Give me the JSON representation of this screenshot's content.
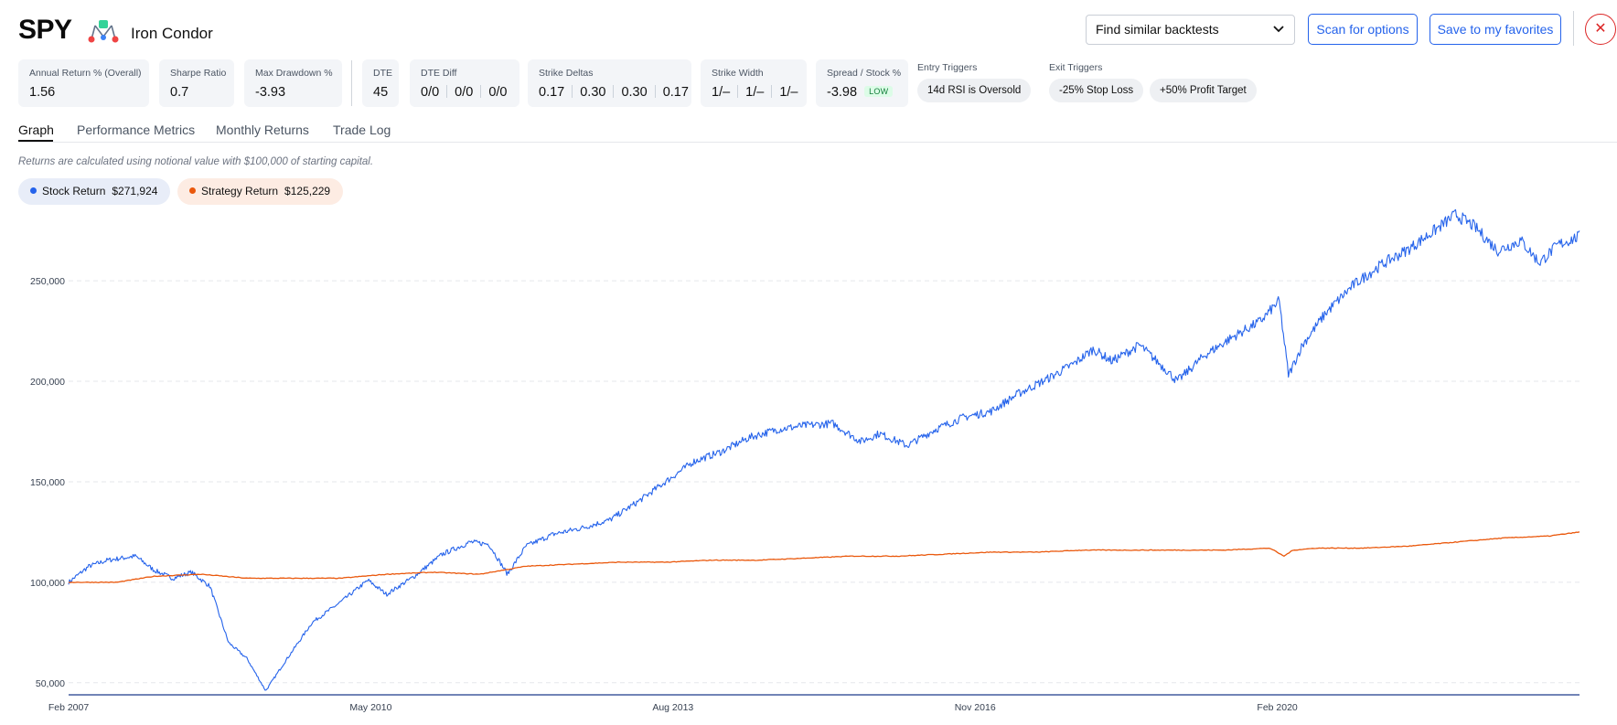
{
  "header": {
    "ticker": "SPY",
    "strategy_name": "Iron Condor",
    "strategy_icon": "iron-condor-icon",
    "similar_select": "Find similar backtests",
    "scan_button": "Scan for options",
    "favorites_button": "Save to my favorites",
    "close_icon": "close-icon"
  },
  "stats": [
    {
      "label": "Annual Return % (Overall)",
      "value": "1.56"
    },
    {
      "label": "Sharpe Ratio",
      "value": "0.7"
    },
    {
      "label": "Max Drawdown %",
      "value": "-3.93"
    },
    {
      "label": "DTE",
      "value": "45"
    },
    {
      "label": "DTE Diff",
      "values": [
        "0/0",
        "0/0",
        "0/0"
      ]
    },
    {
      "label": "Strike Deltas",
      "values": [
        "0.17",
        "0.30",
        "0.30",
        "0.17"
      ]
    },
    {
      "label": "Strike Width",
      "values": [
        "1/–",
        "1/–",
        "1/–"
      ]
    },
    {
      "label": "Spread / Stock %",
      "value": "-3.98",
      "badge": "LOW"
    }
  ],
  "entry_triggers": {
    "title": "Entry Triggers",
    "items": [
      "14d RSI is Oversold"
    ]
  },
  "exit_triggers": {
    "title": "Exit Triggers",
    "items": [
      "-25% Stop Loss",
      "+50% Profit Target"
    ]
  },
  "tabs": [
    {
      "label": "Graph",
      "active": true
    },
    {
      "label": "Performance Metrics",
      "active": false
    },
    {
      "label": "Monthly Returns",
      "active": false
    },
    {
      "label": "Trade Log",
      "active": false
    }
  ],
  "note": "Returns are calculated using notional value with $100,000 of starting capital.",
  "legend": [
    {
      "name": "Stock Return",
      "amount": "$271,924",
      "color": "#2563eb"
    },
    {
      "name": "Strategy Return",
      "amount": "$125,229",
      "color": "#ea580c"
    }
  ],
  "chart_data": {
    "type": "line",
    "y_ticks": [
      50000,
      100000,
      150000,
      200000,
      250000
    ],
    "y_tick_labels": [
      "50,000",
      "100,000",
      "150,000",
      "200,000",
      "250,000"
    ],
    "x_tick_labels": [
      "Feb 2007",
      "May 2010",
      "Aug 2013",
      "Nov 2016",
      "Feb 2020"
    ],
    "x_ticks": [
      2007.08,
      2010.33,
      2013.58,
      2016.83,
      2020.08
    ],
    "xlim": [
      2007.08,
      2023.33
    ],
    "ylim": [
      44000,
      286000
    ],
    "grid": "horizontal-dashed",
    "series": [
      {
        "name": "Stock Return",
        "color": "#2563eb",
        "x": [
          2007.08,
          2007.3,
          2007.5,
          2007.8,
          2008.0,
          2008.2,
          2008.4,
          2008.6,
          2008.8,
          2009.0,
          2009.2,
          2009.4,
          2009.7,
          2010.0,
          2010.3,
          2010.5,
          2010.8,
          2011.1,
          2011.4,
          2011.6,
          2011.8,
          2012.0,
          2012.3,
          2012.6,
          2012.9,
          2013.2,
          2013.5,
          2013.8,
          2014.1,
          2014.4,
          2014.7,
          2015.0,
          2015.3,
          2015.6,
          2015.8,
          2016.1,
          2016.4,
          2016.7,
          2017.0,
          2017.3,
          2017.6,
          2017.9,
          2018.1,
          2018.3,
          2018.6,
          2018.9,
          2019.0,
          2019.3,
          2019.6,
          2019.9,
          2020.1,
          2020.2,
          2020.35,
          2020.6,
          2020.9,
          2021.2,
          2021.5,
          2021.8,
          2022.0,
          2022.2,
          2022.45,
          2022.7,
          2022.9,
          2023.1,
          2023.33
        ],
        "y": [
          100000,
          108000,
          111000,
          113000,
          106000,
          102000,
          105000,
          98000,
          70000,
          62000,
          46000,
          60000,
          80000,
          90000,
          101000,
          94000,
          103000,
          114000,
          120000,
          119000,
          104000,
          118000,
          124000,
          127000,
          131000,
          140000,
          150000,
          160000,
          165000,
          172000,
          176000,
          178000,
          179000,
          170000,
          174000,
          168000,
          176000,
          182000,
          185000,
          194000,
          201000,
          209000,
          216000,
          210000,
          218000,
          205000,
          200000,
          213000,
          222000,
          230000,
          240000,
          203000,
          218000,
          234000,
          248000,
          258000,
          266000,
          276000,
          283000,
          277000,
          265000,
          270000,
          259000,
          268000,
          272000
        ]
      },
      {
        "name": "Strategy Return",
        "color": "#ea580c",
        "x": [
          2007.08,
          2007.6,
          2008.0,
          2008.5,
          2009.0,
          2009.5,
          2010.0,
          2010.5,
          2011.0,
          2011.5,
          2012.0,
          2012.5,
          2013.0,
          2013.5,
          2014.0,
          2014.5,
          2015.0,
          2015.5,
          2016.0,
          2016.5,
          2017.0,
          2017.5,
          2018.0,
          2018.5,
          2019.0,
          2019.5,
          2020.0,
          2020.15,
          2020.25,
          2020.5,
          2021.0,
          2021.5,
          2022.0,
          2022.5,
          2023.0,
          2023.33
        ],
        "y": [
          100000,
          100000,
          103000,
          104000,
          102000,
          102000,
          102000,
          104000,
          105000,
          104000,
          108000,
          109000,
          110000,
          110000,
          111000,
          111000,
          112000,
          113000,
          113000,
          114000,
          115000,
          115000,
          116000,
          116000,
          116000,
          116000,
          117000,
          113000,
          116000,
          117000,
          117000,
          118000,
          120000,
          122000,
          123000,
          125000
        ]
      }
    ]
  }
}
